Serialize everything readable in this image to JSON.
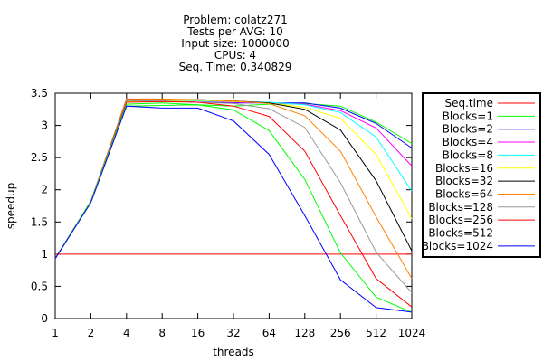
{
  "chart_data": {
    "type": "line",
    "title_lines": [
      "Problem: colatz271",
      "Tests per AVG: 10",
      "Input size: 1000000",
      "CPUs: 4",
      "Seq. Time: 0.340829"
    ],
    "xlabel": "threads",
    "ylabel": "speedup",
    "x": [
      1,
      2,
      4,
      8,
      16,
      32,
      64,
      128,
      256,
      512,
      1024
    ],
    "x_scale": "log2",
    "ylim": [
      0,
      3.5
    ],
    "yticks": [
      0,
      0.5,
      1,
      1.5,
      2,
      2.5,
      3,
      3.5
    ],
    "grid": false,
    "legend_position": "right-outside",
    "series": [
      {
        "name": "Seq.time",
        "color": "#ff0000",
        "values": [
          1,
          1,
          1,
          1,
          1,
          1,
          1,
          1,
          1,
          1,
          1
        ]
      },
      {
        "name": "Blocks=1",
        "color": "#00ff00",
        "values": [
          0.93,
          1.82,
          3.3,
          3.31,
          3.32,
          3.3,
          3.33,
          3.34,
          3.3,
          3.05,
          2.72
        ]
      },
      {
        "name": "Blocks=2",
        "color": "#0000ff",
        "values": [
          0.93,
          1.82,
          3.41,
          3.38,
          3.36,
          3.35,
          3.35,
          3.35,
          3.27,
          3.03,
          2.65
        ]
      },
      {
        "name": "Blocks=4",
        "color": "#ff00ff",
        "values": [
          0.93,
          1.82,
          3.39,
          3.39,
          3.38,
          3.36,
          3.35,
          3.33,
          3.23,
          2.96,
          2.37
        ]
      },
      {
        "name": "Blocks=8",
        "color": "#00ffff",
        "values": [
          0.93,
          1.82,
          3.37,
          3.38,
          3.38,
          3.37,
          3.36,
          3.32,
          3.2,
          2.82,
          1.98
        ]
      },
      {
        "name": "Blocks=16",
        "color": "#ffff00",
        "values": [
          0.93,
          1.82,
          3.37,
          3.38,
          3.39,
          3.37,
          3.35,
          3.28,
          3.11,
          2.55,
          1.55
        ]
      },
      {
        "name": "Blocks=32",
        "color": "#000000",
        "values": [
          0.93,
          1.82,
          3.4,
          3.4,
          3.4,
          3.38,
          3.35,
          3.25,
          2.93,
          2.14,
          1.05
        ]
      },
      {
        "name": "Blocks=64",
        "color": "#ff8000",
        "values": [
          0.93,
          1.82,
          3.41,
          3.41,
          3.4,
          3.38,
          3.34,
          3.15,
          2.6,
          1.58,
          0.62
        ]
      },
      {
        "name": "Blocks=128",
        "color": "#999999",
        "values": [
          0.93,
          1.82,
          3.38,
          3.38,
          3.36,
          3.34,
          3.26,
          2.97,
          2.11,
          1.03,
          0.4
        ]
      },
      {
        "name": "Blocks=256",
        "color": "#ff0000",
        "values": [
          0.93,
          1.82,
          3.36,
          3.37,
          3.36,
          3.3,
          3.14,
          2.6,
          1.6,
          0.62,
          0.18
        ]
      },
      {
        "name": "Blocks=512",
        "color": "#00ff00",
        "values": [
          0.93,
          1.82,
          3.33,
          3.35,
          3.32,
          3.24,
          2.92,
          2.16,
          1.02,
          0.33,
          0.1
        ]
      },
      {
        "name": "Blocks=1024",
        "color": "#0000ff",
        "values": [
          0.93,
          1.8,
          3.3,
          3.27,
          3.27,
          3.07,
          2.55,
          1.6,
          0.6,
          0.17,
          0.1
        ]
      }
    ]
  }
}
